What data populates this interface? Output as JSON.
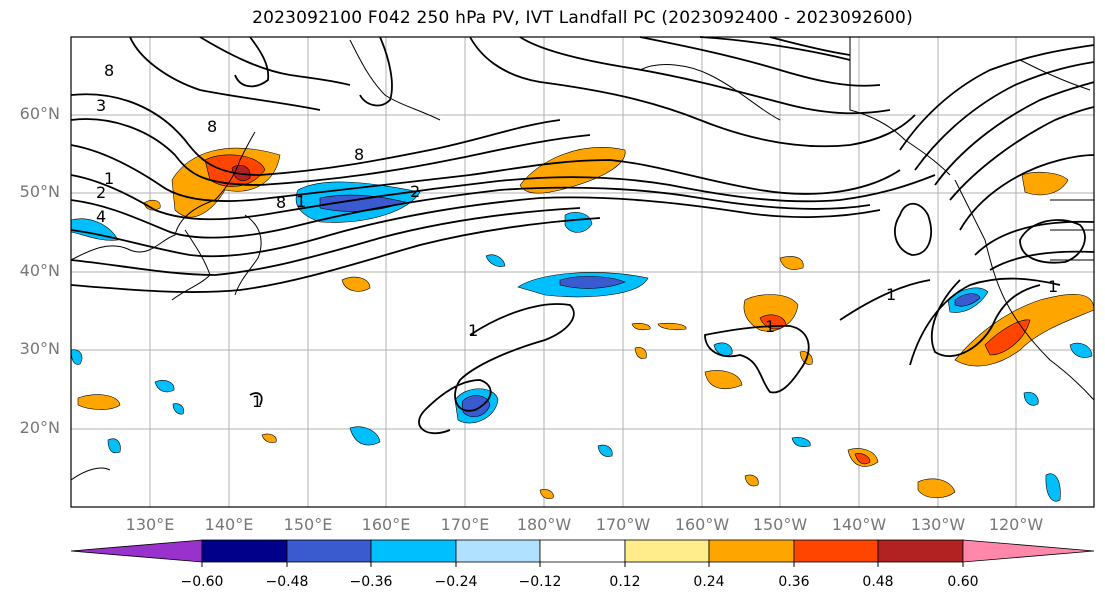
{
  "title": "2023092100 F042 250 hPa PV, IVT Landfall PC (2023092400 - 2023092600)",
  "lat_labels": [
    "60°N",
    "50°N",
    "40°N",
    "30°N",
    "20°N"
  ],
  "lon_labels": [
    "130°E",
    "140°E",
    "150°E",
    "160°E",
    "170°E",
    "180°W",
    "170°W",
    "160°W",
    "150°W",
    "140°W",
    "130°W",
    "120°W"
  ],
  "colorbar": {
    "ticks": [
      "−0.60",
      "−0.48",
      "−0.36",
      "−0.24",
      "−0.12",
      "0.12",
      "0.24",
      "0.36",
      "0.48",
      "0.60"
    ],
    "colors": [
      "#9932cc",
      "#00008b",
      "#3a5bd0",
      "#00bfff",
      "#b0e2ff",
      "#ffffff",
      "#ffec8b",
      "#ffa500",
      "#ff4500",
      "#b22222",
      "#ff88aa"
    ]
  },
  "contour_labels": [
    "8",
    "3",
    "1",
    "2",
    "4",
    "1",
    "2",
    "8",
    "8",
    "8",
    "1",
    "1",
    "1",
    "1",
    "1"
  ]
}
